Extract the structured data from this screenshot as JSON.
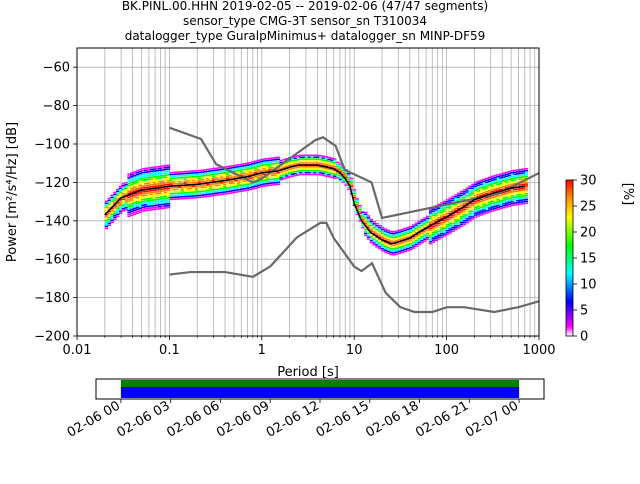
{
  "header": {
    "title_lines": [
      "BK.PINL.00.HHN   2019-02-05 -- 2019-02-06  (47/47 segments)",
      "sensor_type CMG-3T sensor_sn T310034",
      "datalogger_type GuralpMinimus+ datalogger_sn MINP-DF59"
    ]
  },
  "chart_data": [
    {
      "type": "heatmap",
      "title": "BK.PINL.00.HHN   2019-02-05 -- 2019-02-06  (47/47 segments)",
      "xlabel": "Period [s]",
      "ylabel": "Power [m²/s⁴/Hz] [dB]",
      "xscale": "log",
      "xlim": [
        0.01,
        1000
      ],
      "ylim": [
        -200,
        -50
      ],
      "grid": true,
      "x_ticks": [
        0.01,
        0.1,
        1,
        10,
        100,
        1000
      ],
      "x_tick_labels": [
        "0.01",
        "0.1",
        "1",
        "10",
        "100",
        "1000"
      ],
      "y_ticks": [
        -200,
        -180,
        -160,
        -140,
        -120,
        -100,
        -80,
        -60
      ],
      "y_tick_labels": [
        "−200",
        "−180",
        "−160",
        "−140",
        "−120",
        "−100",
        "−80",
        "−60"
      ],
      "colorbar": {
        "label": "[%]",
        "range": [
          0,
          30
        ],
        "ticks": [
          0,
          5,
          10,
          15,
          20,
          25,
          30
        ],
        "tick_labels": [
          "0",
          "5",
          "10",
          "15",
          "20",
          "25",
          "30"
        ]
      },
      "series": [
        {
          "style": "mode",
          "x": [
            0.02,
            0.03,
            0.05,
            0.1,
            0.2,
            0.4,
            0.7,
            1,
            1.5,
            2,
            2.5,
            3,
            4,
            5,
            6,
            7,
            8,
            9,
            10,
            12,
            15,
            20,
            25,
            30,
            40,
            50,
            70,
            100,
            150,
            200,
            300,
            500,
            700
          ],
          "y": [
            -137,
            -128,
            -124,
            -122,
            -121,
            -119,
            -117,
            -115,
            -114,
            -112,
            -111,
            -111,
            -111,
            -112,
            -113,
            -115,
            -118,
            -122,
            -131,
            -140,
            -146,
            -150,
            -152,
            -151,
            -149,
            -146,
            -142,
            -138,
            -133,
            -129,
            -126,
            -123,
            -122
          ]
        },
        {
          "style": "noise_model_high",
          "x": [
            0.1,
            0.22,
            0.32,
            0.8,
            1,
            3.8,
            4.6,
            6.3,
            7.9,
            15.4,
            20,
            354.8,
            10000
          ],
          "y": [
            -91.5,
            -97.4,
            -110.5,
            -120,
            -118,
            -98,
            -96.5,
            -101,
            -113.5,
            -120,
            -138.5,
            -126,
            -91
          ]
        },
        {
          "style": "noise_model_low",
          "x": [
            0.1,
            0.17,
            0.4,
            0.8,
            1.24,
            2.4,
            4.3,
            5,
            6,
            10,
            12,
            15.6,
            21.9,
            31.6,
            45,
            70,
            101,
            154,
            328,
            600,
            10000
          ],
          "y": [
            -168,
            -166.7,
            -166.7,
            -169.2,
            -163.7,
            -148.6,
            -141.1,
            -141.1,
            -149,
            -163.8,
            -166.2,
            -162.1,
            -177.5,
            -185,
            -187.5,
            -187.5,
            -185,
            -185,
            -187.5,
            -185,
            -168
          ]
        }
      ]
    },
    {
      "type": "timeline",
      "tick_labels": [
        "02-06 00",
        "02-06 03",
        "02-06 06",
        "02-06 09",
        "02-06 12",
        "02-06 15",
        "02-06 18",
        "02-06 21",
        "02-07 00"
      ],
      "coverage_start_hour": 0,
      "coverage_end_hour": 24,
      "span_hours": [
        -1.5,
        25.5
      ]
    }
  ]
}
